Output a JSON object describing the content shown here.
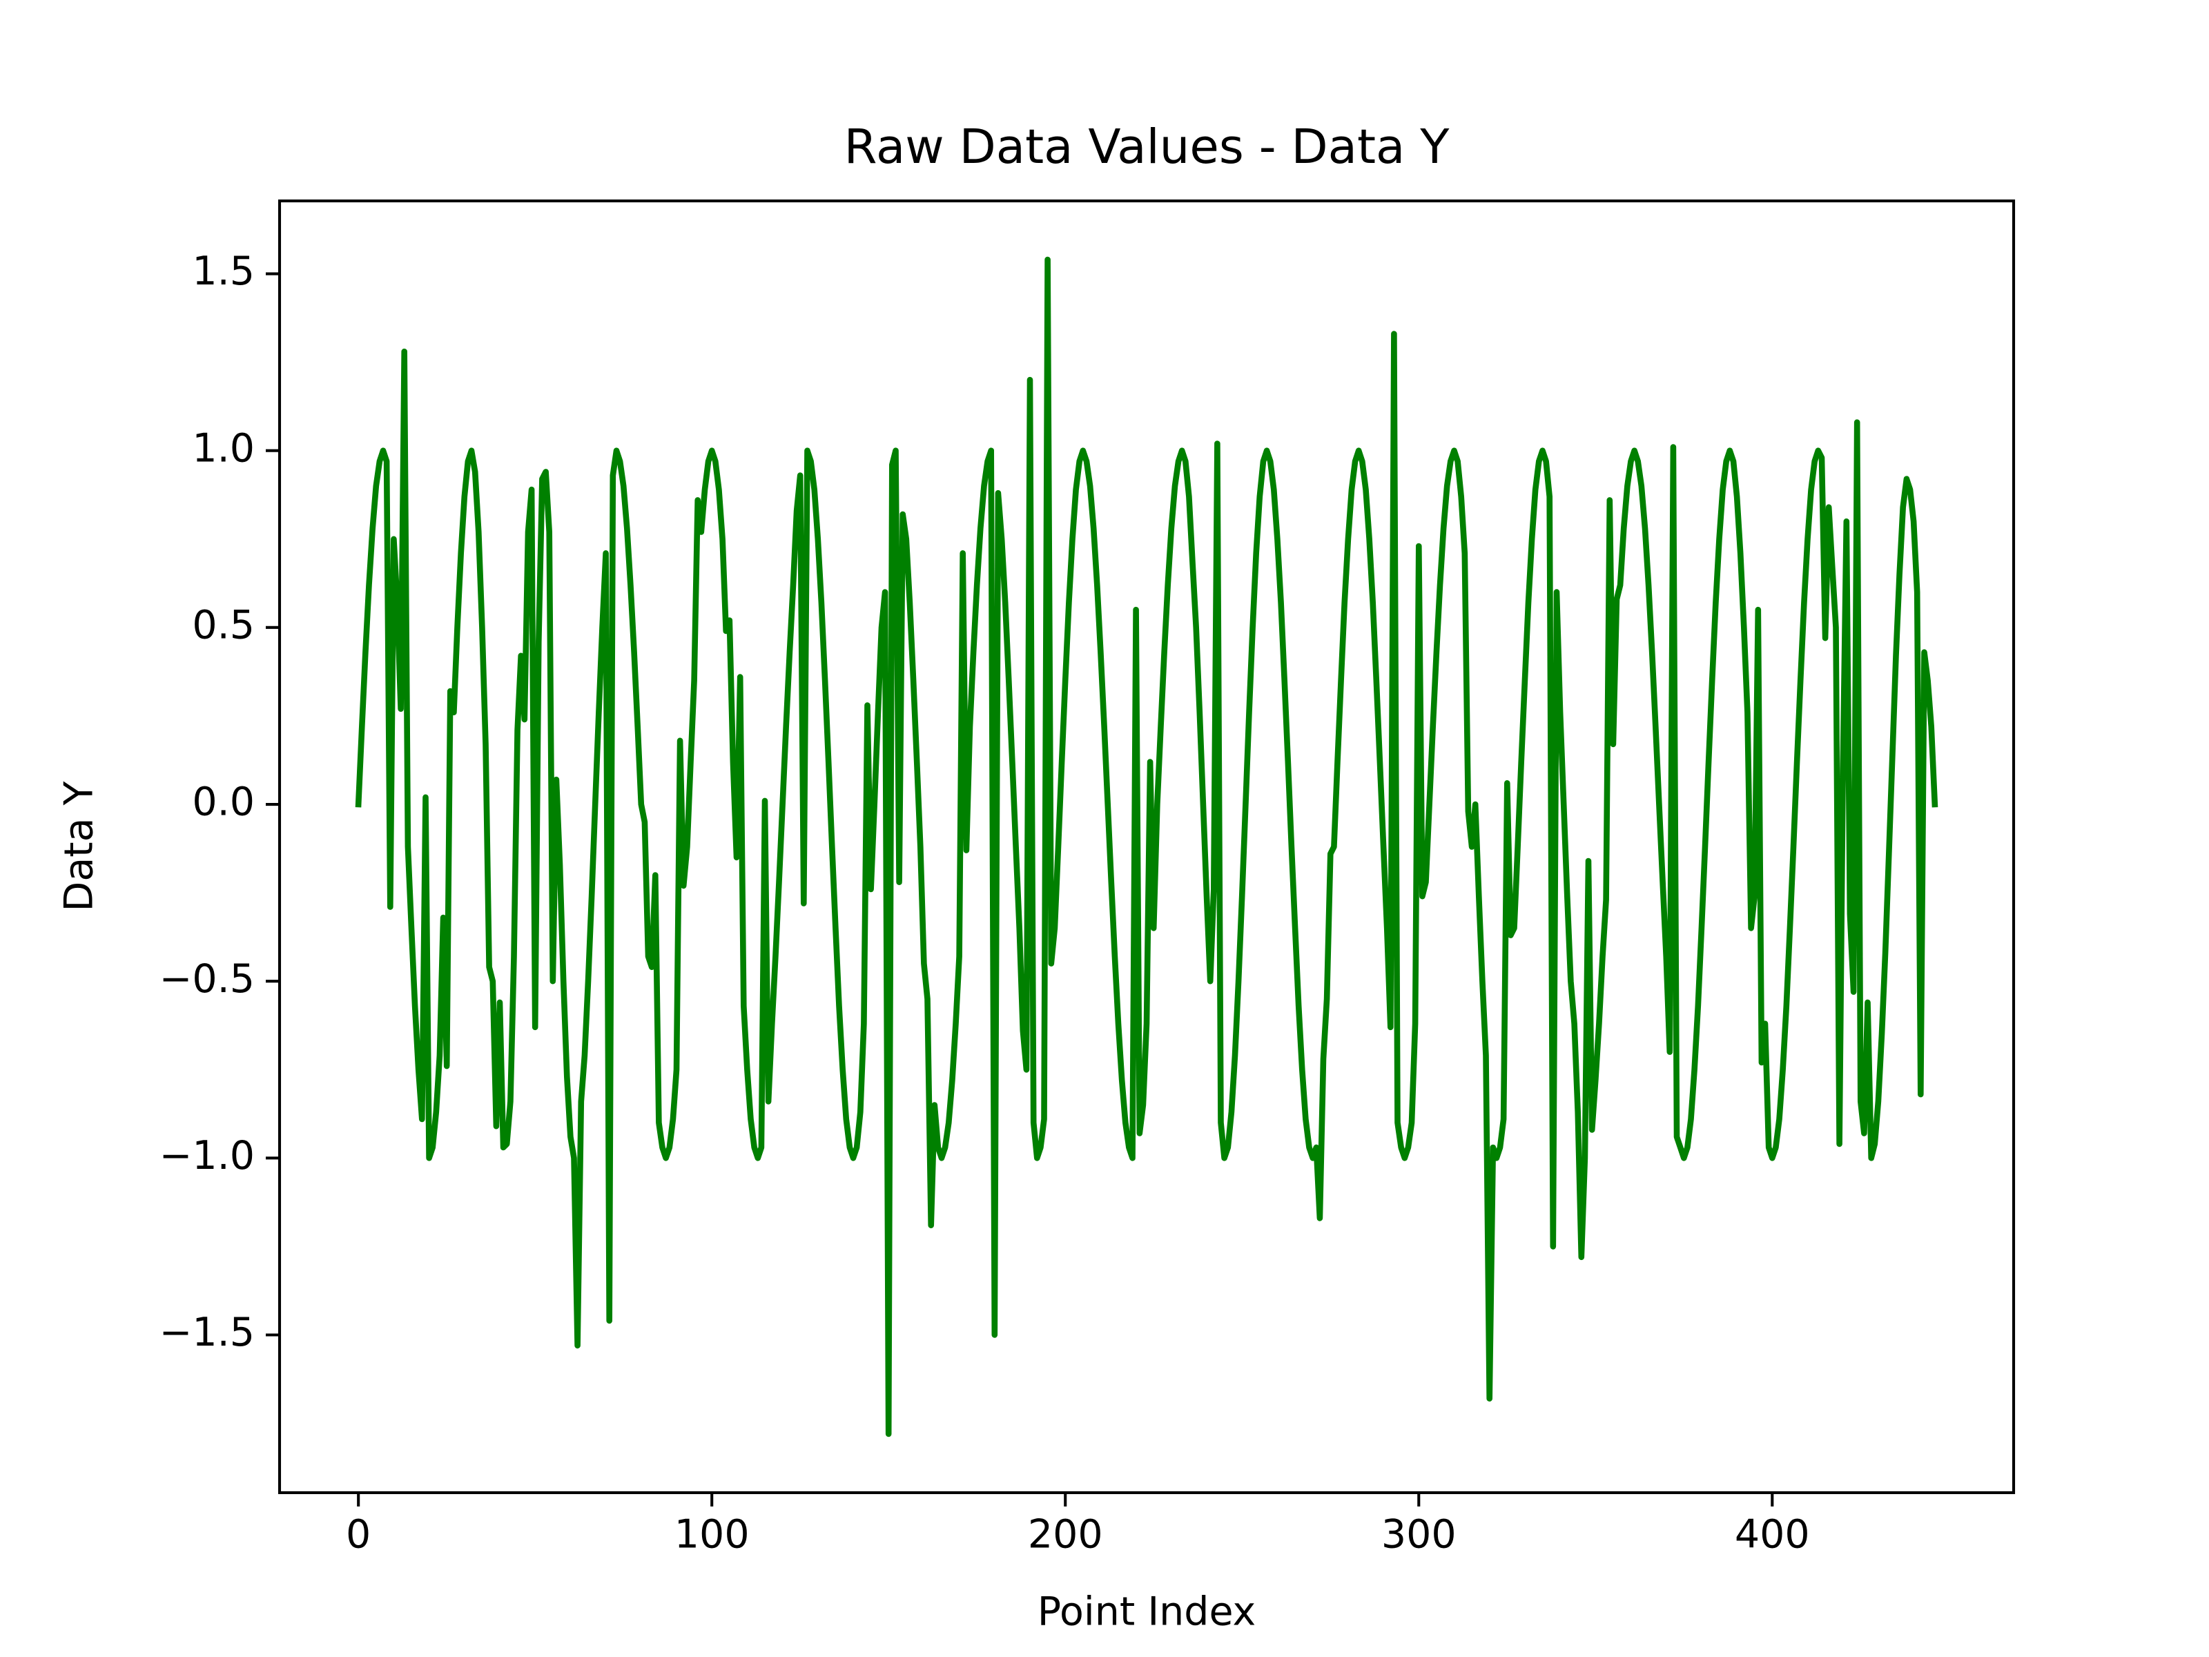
{
  "chart_data": {
    "type": "line",
    "title": "Raw Data Values - Data Y",
    "x_label": "Point Index",
    "y_label": "Data Y",
    "color": "#008000",
    "xlim": [
      -22.3,
      468.3
    ],
    "xticks": [
      0,
      100,
      200,
      300,
      400
    ],
    "ylim": [
      -1.946,
      1.706
    ],
    "yticks": [
      {
        "value": -1.5,
        "label": "−1.5"
      },
      {
        "value": -1.0,
        "label": "−1.0"
      },
      {
        "value": -0.5,
        "label": "−0.5"
      },
      {
        "value": 0,
        "label": "0.0"
      },
      0.5,
      {
        "value": 1.0,
        "label": "1.0"
      },
      1.5
    ],
    "x": [
      0,
      1,
      2,
      3,
      4,
      5,
      6,
      7,
      8,
      9,
      10,
      11,
      12,
      13,
      14,
      15,
      16,
      17,
      18,
      19,
      20,
      21,
      22,
      23,
      24,
      25,
      26,
      27,
      28,
      29,
      30,
      31,
      32,
      33,
      34,
      35,
      36,
      37,
      38,
      39,
      40,
      41,
      42,
      43,
      44,
      45,
      46,
      47,
      48,
      49,
      50,
      51,
      52,
      53,
      54,
      55,
      56,
      57,
      58,
      59,
      60,
      61,
      62,
      63,
      64,
      65,
      66,
      67,
      68,
      69,
      70,
      71,
      72,
      73,
      74,
      75,
      76,
      77,
      78,
      79,
      80,
      81,
      82,
      83,
      84,
      85,
      86,
      87,
      88,
      89,
      90,
      91,
      92,
      93,
      94,
      95,
      96,
      97,
      98,
      99,
      100,
      101,
      102,
      103,
      104,
      105,
      106,
      107,
      108,
      109,
      110,
      111,
      112,
      113,
      114,
      115,
      116,
      117,
      118,
      119,
      120,
      121,
      122,
      123,
      124,
      125,
      126,
      127,
      128,
      129,
      130,
      131,
      132,
      133,
      134,
      135,
      136,
      137,
      138,
      139,
      140,
      141,
      142,
      143,
      144,
      145,
      146,
      147,
      148,
      149,
      150,
      151,
      152,
      153,
      154,
      155,
      156,
      157,
      158,
      159,
      160,
      161,
      162,
      163,
      164,
      165,
      166,
      167,
      168,
      169,
      170,
      171,
      172,
      173,
      174,
      175,
      176,
      177,
      178,
      179,
      180,
      181,
      182,
      183,
      184,
      185,
      186,
      187,
      188,
      189,
      190,
      191,
      192,
      193,
      194,
      195,
      196,
      197,
      198,
      199,
      200,
      201,
      202,
      203,
      204,
      205,
      206,
      207,
      208,
      209,
      210,
      211,
      212,
      213,
      214,
      215,
      216,
      217,
      218,
      219,
      220,
      221,
      222,
      223,
      224,
      225,
      226,
      227,
      228,
      229,
      230,
      231,
      232,
      233,
      234,
      235,
      236,
      237,
      238,
      239,
      240,
      241,
      242,
      243,
      244,
      245,
      246,
      247,
      248,
      249,
      250,
      251,
      252,
      253,
      254,
      255,
      256,
      257,
      258,
      259,
      260,
      261,
      262,
      263,
      264,
      265,
      266,
      267,
      268,
      269,
      270,
      271,
      272,
      273,
      274,
      275,
      276,
      277,
      278,
      279,
      280,
      281,
      282,
      283,
      284,
      285,
      286,
      287,
      288,
      289,
      290,
      291,
      292,
      293,
      294,
      295,
      296,
      297,
      298,
      299,
      300,
      301,
      302,
      303,
      304,
      305,
      306,
      307,
      308,
      309,
      310,
      311,
      312,
      313,
      314,
      315,
      316,
      317,
      318,
      319,
      320,
      321,
      322,
      323,
      324,
      325,
      326,
      327,
      328,
      329,
      330,
      331,
      332,
      333,
      334,
      335,
      336,
      337,
      338,
      339,
      340,
      341,
      342,
      343,
      344,
      345,
      346,
      347,
      348,
      349,
      350,
      351,
      352,
      353,
      354,
      355,
      356,
      357,
      358,
      359,
      360,
      361,
      362,
      363,
      364,
      365,
      366,
      367,
      368,
      369,
      370,
      371,
      372,
      373,
      374,
      375,
      376,
      377,
      378,
      379,
      380,
      381,
      382,
      383,
      384,
      385,
      386,
      387,
      388,
      389,
      390,
      391,
      392,
      393,
      394,
      395,
      396,
      397,
      398,
      399,
      400,
      401,
      402,
      403,
      404,
      405,
      406,
      407,
      408,
      409,
      410,
      411,
      412,
      413,
      414,
      415,
      416,
      417,
      418,
      419,
      420,
      421,
      422,
      423,
      424,
      425,
      426,
      427,
      428,
      429,
      430,
      431,
      432,
      433,
      434,
      435,
      436,
      437,
      438,
      439,
      440,
      441,
      442,
      443,
      444,
      445,
      446
    ],
    "values": [
      0,
      0.22,
      0.43,
      0.62,
      0.78,
      0.9,
      0.97,
      1,
      0.97,
      -0.29,
      0.75,
      0.57,
      0.27,
      1.28,
      -0.12,
      -0.35,
      -0.57,
      -0.75,
      -0.89,
      0.02,
      -1,
      -0.97,
      -0.87,
      -0.71,
      -0.32,
      -0.74,
      0.32,
      0.26,
      0.5,
      0.71,
      0.87,
      0.97,
      1,
      0.94,
      0.77,
      0.5,
      0.17,
      -0.46,
      -0.5,
      -0.91,
      -0.56,
      -0.97,
      -0.96,
      -0.84,
      -0.43,
      0.21,
      0.42,
      0.24,
      0.77,
      0.89,
      -0.63,
      0.46,
      0.92,
      0.94,
      0.77,
      -0.5,
      0.07,
      -0.17,
      -0.5,
      -0.77,
      -0.94,
      -1,
      -1.53,
      -0.84,
      -0.71,
      -0.5,
      -0.26,
      0,
      0.26,
      0.5,
      0.71,
      -1.46,
      0.93,
      1,
      0.97,
      0.9,
      0.78,
      0.62,
      0.43,
      0.22,
      0,
      -0.05,
      -0.43,
      -0.46,
      -0.2,
      -0.9,
      -0.97,
      -1,
      -0.97,
      -0.89,
      -0.75,
      0.18,
      -0.23,
      -0.12,
      0.12,
      0.35,
      0.86,
      0.77,
      0.89,
      0.97,
      1,
      0.97,
      0.89,
      0.75,
      0.49,
      0.52,
      0.12,
      -0.15,
      0.36,
      -0.57,
      -0.75,
      -0.89,
      -0.97,
      -1,
      -0.97,
      0.01,
      -0.84,
      -0.62,
      -0.43,
      -0.22,
      0,
      0.22,
      0.43,
      0.62,
      0.83,
      0.93,
      -0.28,
      1,
      0.97,
      0.89,
      0.75,
      0.57,
      0.35,
      0.12,
      -0.12,
      -0.35,
      -0.57,
      -0.75,
      -0.89,
      -0.97,
      -1,
      -0.97,
      -0.87,
      -0.62,
      0.28,
      -0.24,
      0,
      0.26,
      0.5,
      0.6,
      -1.78,
      0.96,
      1,
      -0.22,
      0.82,
      0.75,
      0.57,
      0.35,
      0.12,
      -0.12,
      -0.45,
      -0.55,
      -1.19,
      -0.85,
      -0.97,
      -1,
      -0.97,
      -0.9,
      -0.78,
      -0.62,
      -0.43,
      0.71,
      -0.13,
      0.22,
      0.43,
      0.62,
      0.78,
      0.9,
      0.97,
      1,
      -1.5,
      0.88,
      0.75,
      0.57,
      0.35,
      0.12,
      -0.12,
      -0.35,
      -0.64,
      -0.75,
      1.2,
      -0.9,
      -1,
      -0.97,
      -0.89,
      1.54,
      -0.45,
      -0.35,
      -0.12,
      0.12,
      0.35,
      0.57,
      0.75,
      0.89,
      0.97,
      1,
      0.97,
      0.9,
      0.78,
      0.62,
      0.43,
      0.22,
      0,
      -0.22,
      -0.43,
      -0.62,
      -0.78,
      -0.9,
      -0.97,
      -1,
      0.55,
      -0.93,
      -0.85,
      -0.62,
      0.12,
      -0.35,
      0,
      0.22,
      0.43,
      0.62,
      0.78,
      0.9,
      0.97,
      1,
      0.97,
      0.87,
      0.68,
      0.5,
      0.26,
      0,
      -0.26,
      -0.5,
      -0.24,
      1.02,
      -0.9,
      -1,
      -0.97,
      -0.87,
      -0.71,
      -0.5,
      -0.26,
      0,
      0.26,
      0.5,
      0.71,
      0.87,
      0.97,
      1,
      0.97,
      0.89,
      0.75,
      0.57,
      0.35,
      0.12,
      -0.12,
      -0.35,
      -0.57,
      -0.75,
      -0.89,
      -0.97,
      -1,
      -0.97,
      -1.17,
      -0.72,
      -0.55,
      -0.14,
      -0.12,
      0.12,
      0.35,
      0.57,
      0.75,
      0.89,
      0.97,
      1,
      0.97,
      0.89,
      0.75,
      0.57,
      0.35,
      0.12,
      -0.12,
      -0.35,
      -0.63,
      1.33,
      -0.9,
      -0.97,
      -1,
      -0.97,
      -0.9,
      -0.62,
      0.73,
      -0.26,
      -0.22,
      0,
      0.22,
      0.43,
      0.62,
      0.78,
      0.9,
      0.97,
      1,
      0.97,
      0.87,
      0.71,
      -0.02,
      -0.12,
      0,
      -0.26,
      -0.5,
      -0.71,
      -1.68,
      -0.97,
      -1,
      -0.97,
      -0.89,
      0.06,
      -0.37,
      -0.35,
      -0.12,
      0.12,
      0.35,
      0.57,
      0.75,
      0.89,
      0.97,
      1,
      0.97,
      0.87,
      -1.25,
      0.6,
      0.26,
      0,
      -0.26,
      -0.5,
      -0.62,
      -0.87,
      -1.28,
      -1,
      -0.16,
      -0.92,
      -0.78,
      -0.62,
      -0.43,
      -0.27,
      0.86,
      0.17,
      0.58,
      0.62,
      0.78,
      0.9,
      0.97,
      1,
      0.97,
      0.9,
      0.78,
      0.62,
      0.43,
      0.22,
      0,
      -0.22,
      -0.43,
      -0.7,
      1.01,
      -0.94,
      -0.97,
      -1,
      -0.97,
      -0.89,
      -0.75,
      -0.57,
      -0.35,
      -0.12,
      0.12,
      0.35,
      0.57,
      0.75,
      0.89,
      0.97,
      1,
      0.97,
      0.87,
      0.71,
      0.5,
      0.26,
      -0.35,
      -0.26,
      0.55,
      -0.73,
      -0.62,
      -0.97,
      -1,
      -0.97,
      -0.89,
      -0.75,
      -0.57,
      -0.35,
      -0.12,
      0.12,
      0.35,
      0.57,
      0.75,
      0.89,
      0.97,
      1,
      0.98,
      0.47,
      0.84,
      0.67,
      0.5,
      -0.96,
      0.1,
      0.8,
      -0.31,
      -0.53,
      1.08,
      -0.84,
      -0.93,
      -0.56,
      -1,
      -0.96,
      -0.84,
      -0.65,
      -0.42,
      -0.14,
      0.14,
      0.42,
      0.65,
      0.84,
      0.92,
      0.89,
      0.8,
      0.6,
      -0.82,
      0.43,
      0.35,
      0.22,
      0
    ]
  }
}
